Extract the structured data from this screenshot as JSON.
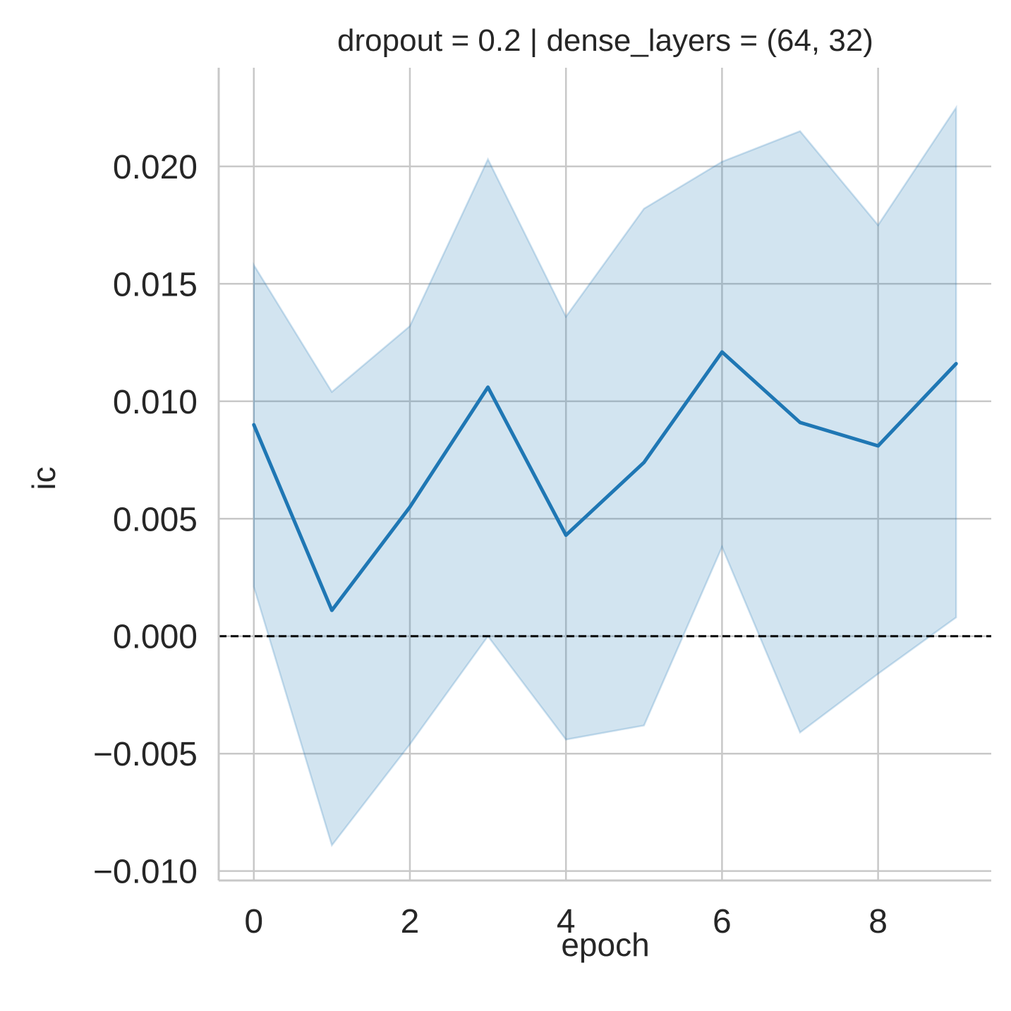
{
  "chart_data": {
    "type": "line",
    "title": "dropout = 0.2 | dense_layers = (64, 32)",
    "xlabel": "epoch",
    "ylabel": "ic",
    "xlim": [
      -0.45,
      9.45
    ],
    "ylim": [
      -0.0104,
      0.0242
    ],
    "x_ticks": [
      0,
      2,
      4,
      6,
      8
    ],
    "x_tick_labels": [
      "0",
      "2",
      "4",
      "6",
      "8"
    ],
    "y_ticks": [
      -0.01,
      -0.005,
      0.0,
      0.005,
      0.01,
      0.015,
      0.02
    ],
    "y_tick_labels": [
      "−0.010",
      "−0.005",
      "0.000",
      "0.005",
      "0.010",
      "0.015",
      "0.020"
    ],
    "grid": true,
    "reference_line": {
      "y": 0.0,
      "style": "dashed",
      "color": "#000000"
    },
    "series": [
      {
        "x": [
          0,
          1,
          2,
          3,
          4,
          5,
          6,
          7,
          8,
          9
        ],
        "y": [
          0.009,
          0.0011,
          0.0055,
          0.0106,
          0.0043,
          0.0074,
          0.0121,
          0.0091,
          0.0081,
          0.0116
        ],
        "ci_upper": [
          0.0158,
          0.0104,
          0.0132,
          0.0203,
          0.0136,
          0.0182,
          0.0202,
          0.0215,
          0.0175,
          0.0225
        ],
        "ci_lower": [
          0.0021,
          -0.0089,
          -0.0046,
          0.0,
          -0.0044,
          -0.0038,
          0.0038,
          -0.0041,
          -0.0016,
          0.0008
        ],
        "color": "#1f77b4",
        "band_color": "#1f77b4"
      }
    ]
  }
}
